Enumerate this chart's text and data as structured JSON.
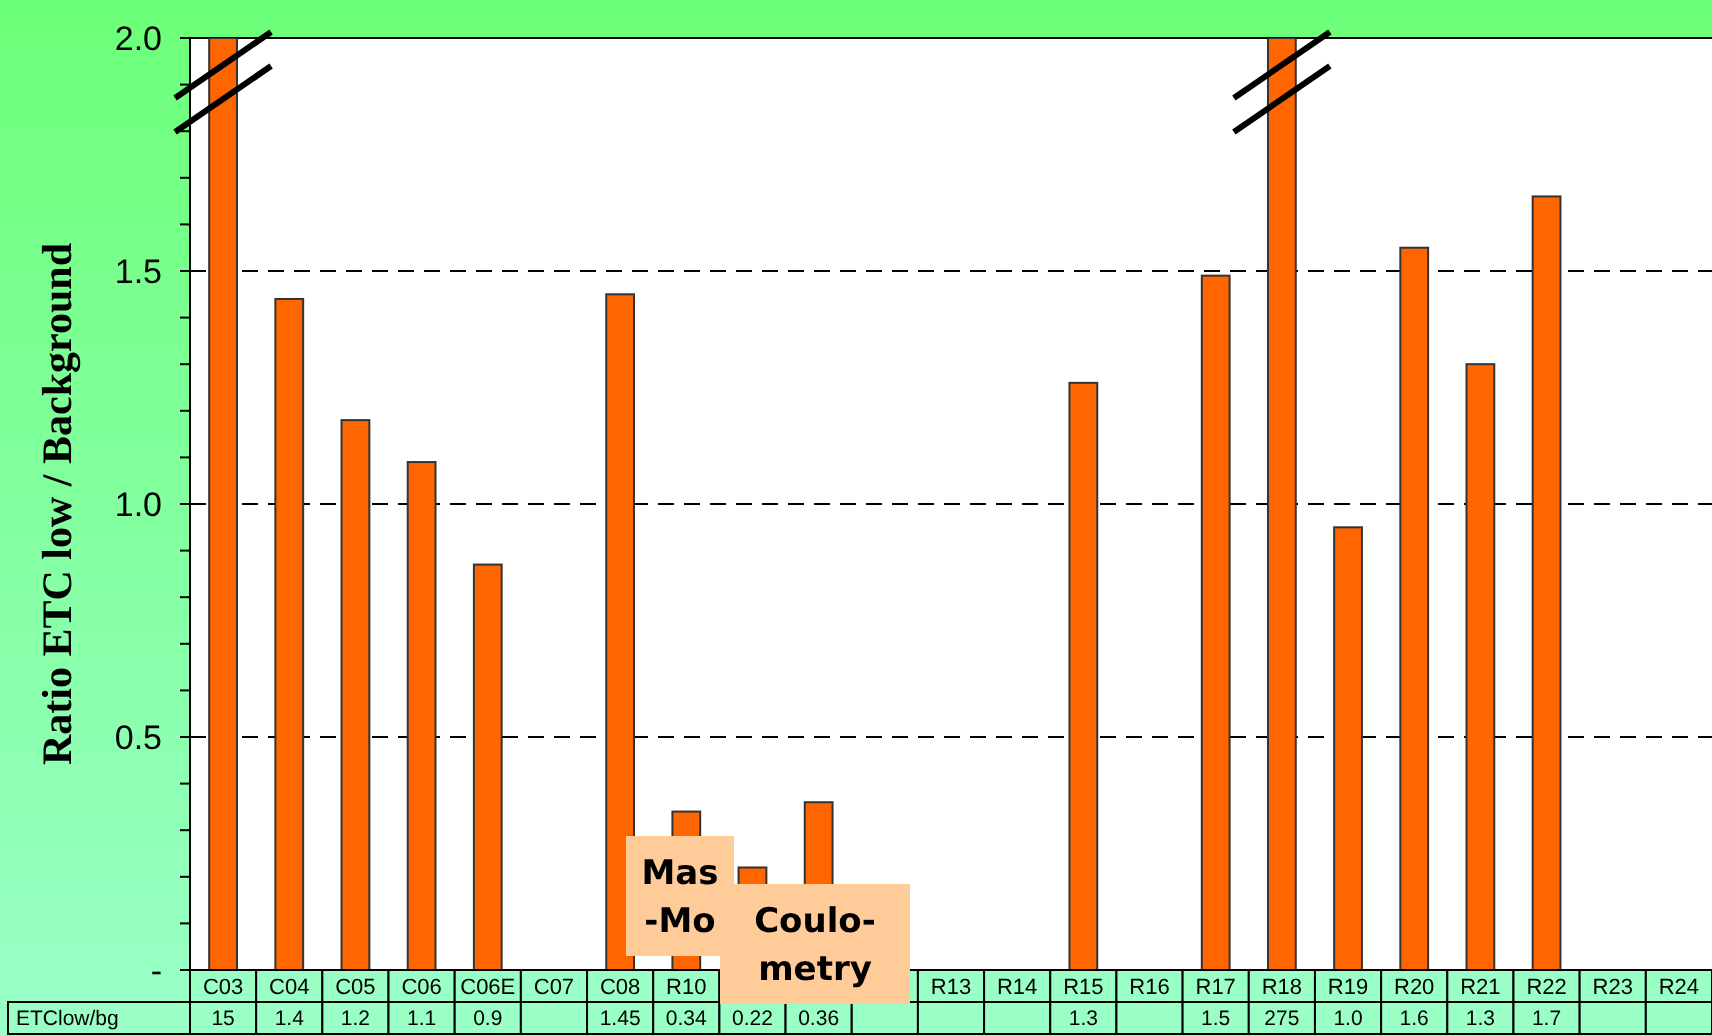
{
  "chart_data": {
    "type": "bar",
    "ylabel": "Ratio ETC low / Background",
    "categories": [
      "C03",
      "C04",
      "C05",
      "C06",
      "C06E",
      "C07",
      "C08",
      "R10",
      null,
      null,
      null,
      "R13",
      "R14",
      "R15",
      "R16",
      "R17",
      "R18",
      "R19",
      "R20",
      "R21",
      "R22",
      "R23",
      "R24"
    ],
    "series": [
      {
        "name": "ETClow/bg",
        "color": "#ff6600",
        "values": [
          2.0,
          1.44,
          1.18,
          1.09,
          0.87,
          null,
          1.45,
          0.34,
          0.22,
          0.36,
          null,
          null,
          null,
          1.26,
          null,
          1.49,
          2.0,
          0.95,
          1.55,
          1.3,
          1.66,
          null,
          null
        ],
        "value_labels": [
          null,
          "1.4",
          "1.2",
          "1.1",
          "0.9",
          null,
          "1.45",
          "0.34",
          "0.22",
          "0.36",
          null,
          null,
          null,
          "1.3",
          null,
          "1.5",
          null,
          "1.0",
          "1.6",
          "1.3",
          "1.7",
          null,
          null
        ]
      }
    ],
    "ylim": [
      0,
      2.0
    ],
    "yticks": [
      {
        "value": 0,
        "label": "-"
      },
      {
        "value": 0.1,
        "label": null
      },
      {
        "value": 0.2,
        "label": null
      },
      {
        "value": 0.3,
        "label": null
      },
      {
        "value": 0.4,
        "label": null
      },
      0.5,
      {
        "value": 0.6,
        "label": null
      },
      {
        "value": 0.7,
        "label": null
      },
      {
        "value": 0.8,
        "label": null
      },
      {
        "value": 0.9,
        "label": null
      },
      {
        "value": 1.0,
        "label": "1.0"
      },
      {
        "value": 1.1,
        "label": null
      },
      {
        "value": 1.2,
        "label": null
      },
      {
        "value": 1.3,
        "label": null
      },
      {
        "value": 1.4,
        "label": null
      },
      1.5,
      {
        "value": 1.6,
        "label": null
      },
      {
        "value": 1.7,
        "label": null
      },
      {
        "value": 1.8,
        "label": null
      },
      {
        "value": 1.9,
        "label": null
      },
      {
        "value": 2.0,
        "label": "2.0"
      }
    ],
    "grid": "y",
    "line_style": "dashed",
    "annotations": [
      "Mas -Mo",
      "Coulo- metry",
      "15",
      "275"
    ]
  }
}
